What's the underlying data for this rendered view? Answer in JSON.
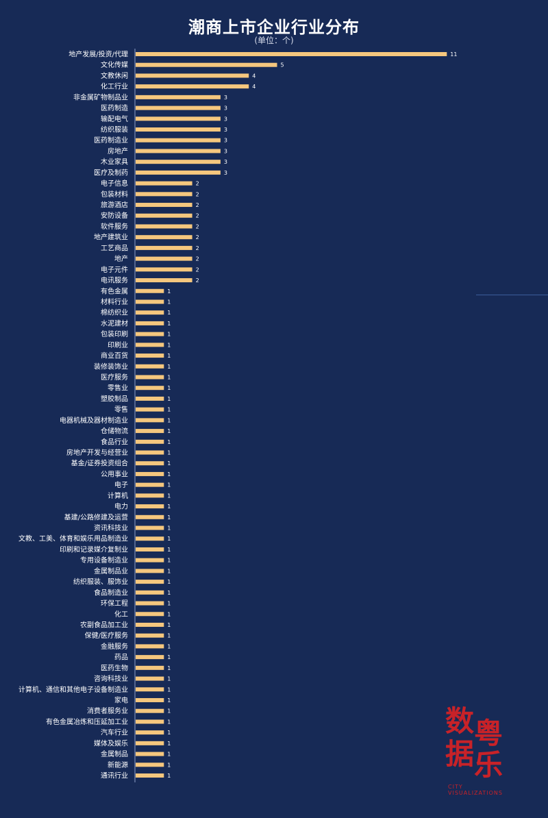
{
  "chart_data": {
    "type": "bar",
    "orientation": "horizontal",
    "title": "潮商上市企业行业分布",
    "subtitle": "(单位：个)",
    "bar_color": "#f5c77e",
    "background_color": "#172a56",
    "categories": [
      "地产发展/投资/代理",
      "文化传媒",
      "文教休闲",
      "化工行业",
      "非金属矿物制品业",
      "医药制造",
      "输配电气",
      "纺织服装",
      "医药制造业",
      "房地产",
      "木业家具",
      "医疗及制药",
      "电子信息",
      "包装材料",
      "旅游酒店",
      "安防设备",
      "软件服务",
      "地产建筑业",
      "工艺商品",
      "地产",
      "电子元件",
      "电讯服务",
      "有色金属",
      "材料行业",
      "棉纺织业",
      "水泥建材",
      "包装印刷",
      "印刷业",
      "商业百货",
      "装修装饰业",
      "医疗服务",
      "零售业",
      "塑胶制品",
      "零售",
      "电器机械及器材制造业",
      "仓储物流",
      "食品行业",
      "房地产开发与经营业",
      "基金/证券投资组合",
      "公用事业",
      "电子",
      "计算机",
      "电力",
      "基建/公路修建及运营",
      "资讯科技业",
      "文教、工美、体育和娱乐用品制造业",
      "印刷和记录媒介复制业",
      "专用设备制造业",
      "金属制品业",
      "纺织服装、服饰业",
      "食品制造业",
      "环保工程",
      "化工",
      "农副食品加工业",
      "保健/医疗服务",
      "金融服务",
      "药品",
      "医药生物",
      "咨询科技业",
      "计算机、通信和其他电子设备制造业",
      "家电",
      "消费者服务业",
      "有色金属冶炼和压延加工业",
      "汽车行业",
      "媒体及娱乐",
      "金属制品",
      "新能源",
      "通讯行业"
    ],
    "values": [
      11,
      5,
      4,
      4,
      3,
      3,
      3,
      3,
      3,
      3,
      3,
      3,
      2,
      2,
      2,
      2,
      2,
      2,
      2,
      2,
      2,
      2,
      1,
      1,
      1,
      1,
      1,
      1,
      1,
      1,
      1,
      1,
      1,
      1,
      1,
      1,
      1,
      1,
      1,
      1,
      1,
      1,
      1,
      1,
      1,
      1,
      1,
      1,
      1,
      1,
      1,
      1,
      1,
      1,
      1,
      1,
      1,
      1,
      1,
      1,
      1,
      1,
      1,
      1,
      1,
      1,
      1,
      1
    ],
    "xlim": [
      0,
      11
    ],
    "grid": false,
    "legend": "none"
  },
  "watermark": {
    "chars": [
      "数",
      "粤",
      "据",
      "乐"
    ],
    "tagline": "CITY VISUALIZATIONS",
    "color": "#c82228"
  }
}
